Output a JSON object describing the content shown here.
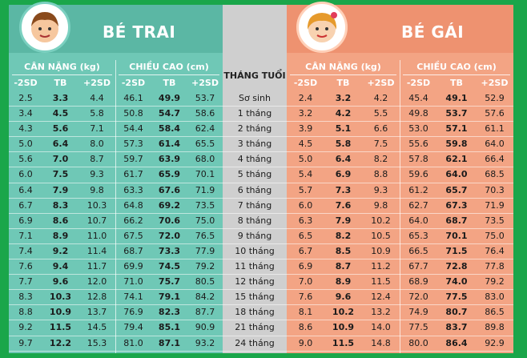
{
  "boy": {
    "title": "BÉ TRAI",
    "weight_header": "CÂN NẶNG (kg)",
    "height_header": "CHIỀU CAO (cm)",
    "cols": [
      "-2SD",
      "TB",
      "+2SD",
      "-2SD",
      "TB",
      "+2SD"
    ],
    "rows": [
      [
        "2.5",
        "3.3",
        "4.4",
        "46.1",
        "49.9",
        "53.7"
      ],
      [
        "3.4",
        "4.5",
        "5.8",
        "50.8",
        "54.7",
        "58.6"
      ],
      [
        "4.3",
        "5.6",
        "7.1",
        "54.4",
        "58.4",
        "62.4"
      ],
      [
        "5.0",
        "6.4",
        "8.0",
        "57.3",
        "61.4",
        "65.5"
      ],
      [
        "5.6",
        "7.0",
        "8.7",
        "59.7",
        "63.9",
        "68.0"
      ],
      [
        "6.0",
        "7.5",
        "9.3",
        "61.7",
        "65.9",
        "70.1"
      ],
      [
        "6.4",
        "7.9",
        "9.8",
        "63.3",
        "67.6",
        "71.9"
      ],
      [
        "6.7",
        "8.3",
        "10.3",
        "64.8",
        "69.2",
        "73.5"
      ],
      [
        "6.9",
        "8.6",
        "10.7",
        "66.2",
        "70.6",
        "75.0"
      ],
      [
        "7.1",
        "8.9",
        "11.0",
        "67.5",
        "72.0",
        "76.5"
      ],
      [
        "7.4",
        "9.2",
        "11.4",
        "68.7",
        "73.3",
        "77.9"
      ],
      [
        "7.6",
        "9.4",
        "11.7",
        "69.9",
        "74.5",
        "79.2"
      ],
      [
        "7.7",
        "9.6",
        "12.0",
        "71.0",
        "75.7",
        "80.5"
      ],
      [
        "8.3",
        "10.3",
        "12.8",
        "74.1",
        "79.1",
        "84.2"
      ],
      [
        "8.8",
        "10.9",
        "13.7",
        "76.9",
        "82.3",
        "87.7"
      ],
      [
        "9.2",
        "11.5",
        "14.5",
        "79.4",
        "85.1",
        "90.9"
      ],
      [
        "9.7",
        "12.2",
        "15.3",
        "81.0",
        "87.1",
        "93.2"
      ]
    ]
  },
  "age": {
    "header": "THÁNG TUỔI",
    "labels": [
      "Sơ sinh",
      "1 tháng",
      "2 tháng",
      "3 tháng",
      "4 tháng",
      "5 tháng",
      "6 tháng",
      "7 tháng",
      "8 tháng",
      "9 tháng",
      "10 tháng",
      "11 tháng",
      "12 tháng",
      "15 tháng",
      "18 tháng",
      "21 tháng",
      "24 tháng"
    ]
  },
  "girl": {
    "title": "BÉ GÁI",
    "weight_header": "CÂN NẶNG (kg)",
    "height_header": "CHIỀU CAO (cm)",
    "cols": [
      "-2SD",
      "TB",
      "+2SD",
      "-2SD",
      "TB",
      "+2SD"
    ],
    "rows": [
      [
        "2.4",
        "3.2",
        "4.2",
        "45.4",
        "49.1",
        "52.9"
      ],
      [
        "3.2",
        "4.2",
        "5.5",
        "49.8",
        "53.7",
        "57.6"
      ],
      [
        "3.9",
        "5.1",
        "6.6",
        "53.0",
        "57.1",
        "61.1"
      ],
      [
        "4.5",
        "5.8",
        "7.5",
        "55.6",
        "59.8",
        "64.0"
      ],
      [
        "5.0",
        "6.4",
        "8.2",
        "57.8",
        "62.1",
        "66.4"
      ],
      [
        "5.4",
        "6.9",
        "8.8",
        "59.6",
        "64.0",
        "68.5"
      ],
      [
        "5.7",
        "7.3",
        "9.3",
        "61.2",
        "65.7",
        "70.3"
      ],
      [
        "6.0",
        "7.6",
        "9.8",
        "62.7",
        "67.3",
        "71.9"
      ],
      [
        "6.3",
        "7.9",
        "10.2",
        "64.0",
        "68.7",
        "73.5"
      ],
      [
        "6.5",
        "8.2",
        "10.5",
        "65.3",
        "70.1",
        "75.0"
      ],
      [
        "6.7",
        "8.5",
        "10.9",
        "66.5",
        "71.5",
        "76.4"
      ],
      [
        "6.9",
        "8.7",
        "11.2",
        "67.7",
        "72.8",
        "77.8"
      ],
      [
        "7.0",
        "8.9",
        "11.5",
        "68.9",
        "74.0",
        "79.2"
      ],
      [
        "7.6",
        "9.6",
        "12.4",
        "72.0",
        "77.5",
        "83.0"
      ],
      [
        "8.1",
        "10.2",
        "13.2",
        "74.9",
        "80.7",
        "86.5"
      ],
      [
        "8.6",
        "10.9",
        "14.0",
        "77.5",
        "83.7",
        "89.8"
      ],
      [
        "9.0",
        "11.5",
        "14.8",
        "80.0",
        "86.4",
        "92.9"
      ]
    ]
  },
  "colors": {
    "boy_bg": "#6fc8b6",
    "girl_bg": "#f3a484",
    "mid_bg": "#cfcfcf",
    "frame": "#1aa64a"
  }
}
